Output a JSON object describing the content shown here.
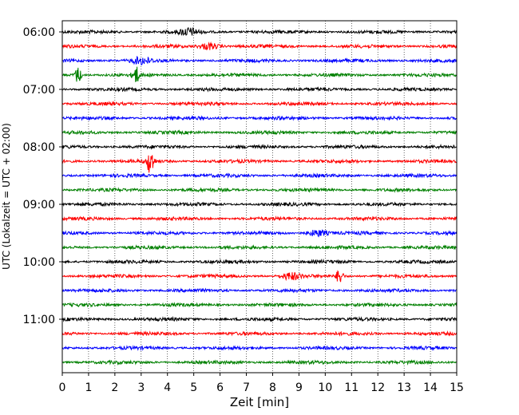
{
  "chart_data": {
    "type": "line",
    "xlabel": "Zeit  [min]",
    "ylabel": "UTC (Lokalzeit = UTC + 02:00)",
    "xlim": [
      0,
      15
    ],
    "x_ticks": [
      "0",
      "1",
      "2",
      "3",
      "4",
      "5",
      "6",
      "7",
      "8",
      "9",
      "10",
      "11",
      "12",
      "13",
      "14",
      "15"
    ],
    "y_tick_labels": [
      "06:00",
      "07:00",
      "08:00",
      "09:00",
      "10:00",
      "11:00"
    ],
    "trace_start": "06:00",
    "trace_interval_minutes": 15,
    "trace_count": 24,
    "colors": [
      "#000000",
      "#ff0000",
      "#0000ff",
      "#008000"
    ],
    "grid_x": true,
    "grid_style": "dotted",
    "events": [
      {
        "trace": 0,
        "minute": 4.8,
        "amplitude": "small"
      },
      {
        "trace": 1,
        "minute": 5.6,
        "amplitude": "small"
      },
      {
        "trace": 2,
        "minute": 3.0,
        "amplitude": "small"
      },
      {
        "trace": 3,
        "minute": 0.6,
        "amplitude": "medium"
      },
      {
        "trace": 3,
        "minute": 2.8,
        "amplitude": "medium"
      },
      {
        "trace": 9,
        "minute": 3.35,
        "amplitude": "large"
      },
      {
        "trace": 14,
        "minute": 9.7,
        "amplitude": "small"
      },
      {
        "trace": 17,
        "minute": 8.7,
        "amplitude": "small"
      },
      {
        "trace": 17,
        "minute": 10.55,
        "amplitude": "medium"
      }
    ]
  }
}
